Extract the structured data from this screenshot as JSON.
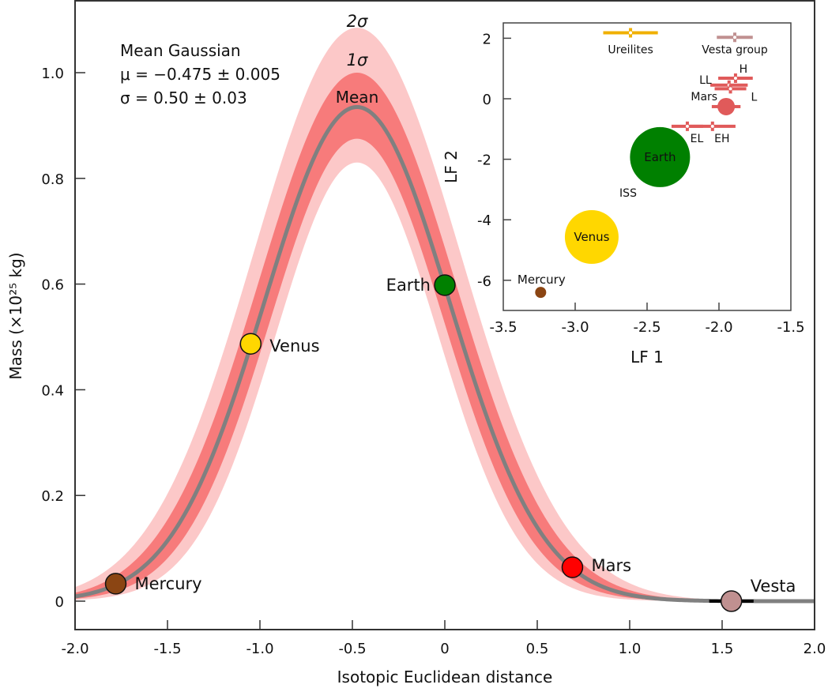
{
  "chart_data": [
    {
      "type": "line",
      "xlabel": "Isotopic Euclidean distance",
      "ylabel": "Mass (×10²⁵ kg)",
      "xlim": [
        -2.0,
        2.0
      ],
      "ylim": [
        -0.05,
        1.13
      ],
      "x_ticks": [
        "-2.0",
        "-1.5",
        "-1.0",
        "-0.5",
        "0",
        "0.5",
        "1.0",
        "1.5",
        "2.0"
      ],
      "x_tick_values": [
        -2.0,
        -1.5,
        -1.0,
        -0.5,
        0,
        0.5,
        1.0,
        1.5,
        2.0
      ],
      "y_ticks": [
        "0",
        "0.2",
        "0.4",
        "0.6",
        "0.8",
        "1.0"
      ],
      "y_tick_values": [
        0,
        0.2,
        0.4,
        0.6,
        0.8,
        1.0
      ],
      "grid": false,
      "annotation": {
        "title": "Mean Gaussian",
        "mu_line": "μ = −0.475 ± 0.005",
        "sigma_line": "σ = 0.50 ± 0.03"
      },
      "band_labels": {
        "two_sigma": "2σ",
        "one_sigma": "1σ",
        "mean": "Mean"
      },
      "gaussian": {
        "mu": -0.475,
        "sigma": 0.5,
        "amplitude": 0.935,
        "one_sigma_amplitude": [
          0.875,
          1.0
        ],
        "two_sigma_amplitude": [
          0.83,
          1.085
        ],
        "sigma_range_1": [
          0.47,
          0.53
        ],
        "sigma_range_2": [
          0.44,
          0.56
        ]
      },
      "colors": {
        "mean": "#808080",
        "one_sigma": "#f77b7b",
        "two_sigma": "#fcc8c8"
      },
      "points": [
        {
          "name": "Mercury",
          "x": -1.78,
          "y": 0.033,
          "xerr": 0.05,
          "color": "#8b4513"
        },
        {
          "name": "Venus",
          "x": -1.05,
          "y": 0.487,
          "xerr": 0,
          "color": "#ffd700"
        },
        {
          "name": "Earth",
          "x": 0.0,
          "y": 0.598,
          "xerr": 0,
          "color": "#008000"
        },
        {
          "name": "Mars",
          "x": 0.69,
          "y": 0.064,
          "xerr": 0.05,
          "color": "#ff0000"
        },
        {
          "name": "Vesta",
          "x": 1.55,
          "y": 0.0,
          "xerr": 0.12,
          "color": "#c09090"
        }
      ]
    },
    {
      "type": "scatter",
      "xlabel": "LF 1",
      "ylabel": "LF 2",
      "xlim": [
        -3.5,
        -1.5
      ],
      "ylim": [
        -7.0,
        2.5
      ],
      "x_ticks": [
        "-3.5",
        "-3.0",
        "-2.5",
        "-2.0",
        "-1.5"
      ],
      "x_tick_values": [
        -3.5,
        -3.0,
        -2.5,
        -2.0,
        -1.5
      ],
      "y_ticks": [
        "2",
        "0",
        "-2",
        "-4",
        "-6"
      ],
      "y_tick_values": [
        2,
        0,
        -2,
        -4,
        -6
      ],
      "grid": false,
      "planets": [
        {
          "name": "Earth",
          "x": -2.41,
          "y": -1.93,
          "color": "#008000"
        },
        {
          "name": "Venus",
          "x": -2.885,
          "y": -4.57,
          "color": "#ffd700"
        },
        {
          "name": "Mercury",
          "x": -3.24,
          "y": -6.4,
          "color": "#8b4513"
        },
        {
          "name": "Mars",
          "x": -1.95,
          "y": -0.26,
          "xerr": 0.1,
          "color": "#e05a5a"
        }
      ],
      "groups": [
        {
          "name": "Ureilites",
          "x": -2.615,
          "y": 2.18,
          "xerr": 0.19,
          "color": "#f0b000"
        },
        {
          "name": "Vesta group",
          "x": -1.89,
          "y": 2.03,
          "xerr": 0.125,
          "color": "#c09090"
        },
        {
          "name": "H",
          "x": -1.885,
          "y": 0.68,
          "xerr": 0.12,
          "color": "#e05a5a"
        },
        {
          "name": "LL",
          "x": -1.93,
          "y": 0.45,
          "xerr": 0.13,
          "color": "#e05a5a"
        },
        {
          "name": "L",
          "x": -1.92,
          "y": 0.33,
          "xerr": 0.11,
          "color": "#e05a5a"
        },
        {
          "name": "EL",
          "x": -2.22,
          "y": -0.91,
          "xerr": 0.11,
          "color": "#e05a5a"
        },
        {
          "name": "EH",
          "x": -2.045,
          "y": -0.91,
          "xerr": 0.16,
          "color": "#e05a5a"
        }
      ],
      "annotations": [
        "ISS"
      ]
    }
  ]
}
